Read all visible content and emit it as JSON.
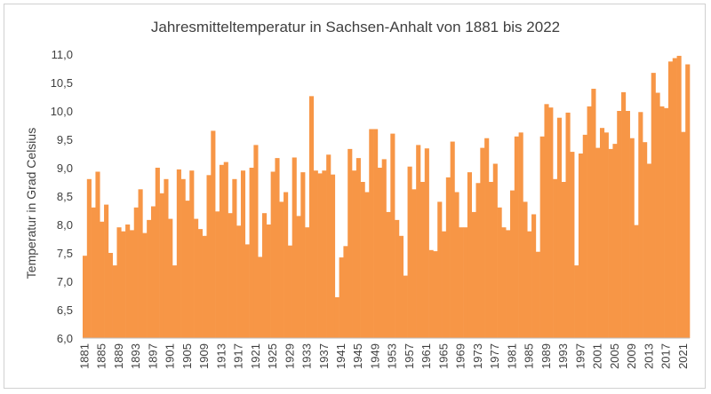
{
  "chart_data": {
    "type": "bar",
    "title": "Jahresmitteltemperatur in Sachsen-Anhalt von 1881 bis 2022",
    "xlabel": "",
    "ylabel": "Temperatur in Grad Celsius",
    "ylim": [
      6.0,
      11.0
    ],
    "ytick_step": 0.5,
    "ytick_labels": [
      "6,0",
      "6,5",
      "7,0",
      "7,5",
      "8,0",
      "8,5",
      "9,0",
      "9,5",
      "10,0",
      "10,5",
      "11,0"
    ],
    "xtick_labels": [
      "1881",
      "1885",
      "1889",
      "1893",
      "1897",
      "1901",
      "1905",
      "1909",
      "1913",
      "1917",
      "1921",
      "1925",
      "1929",
      "1933",
      "1937",
      "1941",
      "1945",
      "1949",
      "1953",
      "1957",
      "1961",
      "1965",
      "1969",
      "1973",
      "1977",
      "1981",
      "1985",
      "1989",
      "1993",
      "1997",
      "2001",
      "2005",
      "2009",
      "2013",
      "2017",
      "2021"
    ],
    "bar_color": "#f79646",
    "grid": false,
    "legend": "none",
    "categories": [
      1881,
      1882,
      1883,
      1884,
      1885,
      1886,
      1887,
      1888,
      1889,
      1890,
      1891,
      1892,
      1893,
      1894,
      1895,
      1896,
      1897,
      1898,
      1899,
      1900,
      1901,
      1902,
      1903,
      1904,
      1905,
      1906,
      1907,
      1908,
      1909,
      1910,
      1911,
      1912,
      1913,
      1914,
      1915,
      1916,
      1917,
      1918,
      1919,
      1920,
      1921,
      1922,
      1923,
      1924,
      1925,
      1926,
      1927,
      1928,
      1929,
      1930,
      1931,
      1932,
      1933,
      1934,
      1935,
      1936,
      1937,
      1938,
      1939,
      1940,
      1941,
      1942,
      1943,
      1944,
      1945,
      1946,
      1947,
      1948,
      1949,
      1950,
      1951,
      1952,
      1953,
      1954,
      1955,
      1956,
      1957,
      1958,
      1959,
      1960,
      1961,
      1962,
      1963,
      1964,
      1965,
      1966,
      1967,
      1968,
      1969,
      1970,
      1971,
      1972,
      1973,
      1974,
      1975,
      1976,
      1977,
      1978,
      1979,
      1980,
      1981,
      1982,
      1983,
      1984,
      1985,
      1986,
      1987,
      1988,
      1989,
      1990,
      1991,
      1992,
      1993,
      1994,
      1995,
      1996,
      1997,
      1998,
      1999,
      2000,
      2001,
      2002,
      2003,
      2004,
      2005,
      2006,
      2007,
      2008,
      2009,
      2010,
      2011,
      2012,
      2013,
      2014,
      2015,
      2016,
      2017,
      2018,
      2019,
      2020,
      2021,
      2022
    ],
    "values": [
      7.45,
      8.8,
      8.3,
      8.93,
      8.05,
      8.35,
      7.5,
      7.28,
      7.95,
      7.88,
      8.0,
      7.9,
      8.3,
      8.62,
      7.85,
      8.08,
      8.32,
      9.0,
      8.55,
      8.8,
      8.1,
      7.28,
      8.97,
      8.8,
      8.42,
      8.95,
      8.1,
      7.92,
      7.8,
      8.87,
      9.65,
      8.23,
      9.05,
      9.1,
      8.2,
      8.8,
      7.98,
      8.95,
      7.65,
      9.0,
      9.4,
      7.43,
      8.2,
      8.0,
      8.93,
      9.17,
      8.4,
      8.57,
      7.63,
      9.18,
      8.15,
      8.92,
      7.95,
      10.26,
      8.95,
      8.9,
      8.95,
      9.23,
      8.88,
      6.72,
      7.42,
      7.62,
      9.33,
      8.95,
      9.17,
      8.75,
      8.57,
      9.68,
      9.68,
      9.0,
      9.15,
      8.22,
      9.6,
      8.08,
      7.8,
      7.1,
      9.02,
      8.62,
      9.4,
      8.75,
      9.34,
      7.55,
      7.53,
      8.4,
      7.88,
      8.83,
      9.46,
      8.57,
      7.95,
      7.95,
      8.92,
      8.22,
      8.73,
      9.35,
      9.52,
      8.75,
      9.07,
      8.3,
      7.95,
      7.9,
      8.6,
      9.55,
      9.62,
      8.4,
      7.88,
      8.18,
      7.52,
      9.55,
      10.12,
      10.06,
      8.8,
      9.88,
      8.75,
      9.97,
      9.28,
      7.28,
      9.25,
      9.58,
      10.08,
      10.39,
      9.35,
      9.7,
      9.62,
      9.33,
      9.42,
      10.0,
      10.33,
      10.0,
      9.52,
      7.99,
      9.98,
      9.45,
      9.07,
      10.67,
      10.32,
      10.08,
      10.05,
      10.87,
      10.93,
      10.97,
      9.63,
      10.82
    ]
  }
}
